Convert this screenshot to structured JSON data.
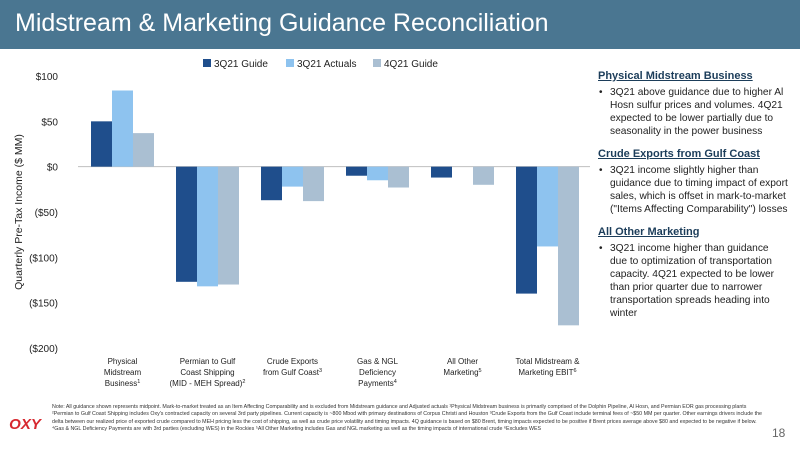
{
  "header": {
    "title": "Midstream & Marketing Guidance Reconciliation"
  },
  "colors": {
    "title_bar": "#4a7691",
    "guide_3q21": "#1f4e8c",
    "actuals_3q21": "#8ec3ef",
    "guide_4q21": "#aabfd2",
    "logo_red": "#d7282f"
  },
  "chart_data": {
    "type": "bar",
    "ylabel": "Quarterly Pre-Tax Income ($ MM)",
    "ylim": [
      -200,
      100
    ],
    "yticks": [
      100,
      50,
      0,
      -50,
      -100,
      -150,
      -200
    ],
    "ytick_labels": [
      "$100",
      "$50",
      "$0",
      "($50)",
      "($100)",
      "($150)",
      "($200)"
    ],
    "legend_position": "top",
    "categories": [
      {
        "lines": [
          "Physical",
          "Midstream",
          "Business"
        ],
        "sup": "1"
      },
      {
        "lines": [
          "Permian to Gulf",
          "Coast Shipping",
          "(MID - MEH Spread)"
        ],
        "sup": "2"
      },
      {
        "lines": [
          "Crude Exports",
          "from Gulf Coast"
        ],
        "sup": "3"
      },
      {
        "lines": [
          "Gas & NGL",
          "Deficiency",
          "Payments"
        ],
        "sup": "4"
      },
      {
        "lines": [
          "All Other",
          "Marketing"
        ],
        "sup": "5"
      },
      {
        "lines": [
          "Total Midstream &",
          "Marketing EBIT"
        ],
        "sup": "6"
      }
    ],
    "series": [
      {
        "name": "3Q21 Guide",
        "color": "#1f4e8c",
        "values": [
          50,
          -127,
          -37,
          -10,
          -12,
          -140
        ]
      },
      {
        "name": "3Q21 Actuals",
        "color": "#8ec3ef",
        "values": [
          84,
          -132,
          -22,
          -15,
          null,
          -88
        ]
      },
      {
        "name": "4Q21 Guide",
        "color": "#aabfd2",
        "values": [
          37,
          -130,
          -38,
          -23,
          -20,
          -175
        ]
      }
    ]
  },
  "commentary": [
    {
      "heading": "Physical Midstream Business",
      "bullet": "•",
      "text": "3Q21 above guidance due to higher Al Hosn sulfur prices and volumes. 4Q21 expected to be lower partially due to seasonality in the power business"
    },
    {
      "heading": "Crude Exports from Gulf Coast",
      "bullet": "•",
      "text": "3Q21 income slightly higher than guidance due to timing impact of export sales, which is offset in mark-to-market (\"Items Affecting Comparability\") losses"
    },
    {
      "heading": "All Other Marketing",
      "bullet": "•",
      "text": "3Q21 income higher than guidance due to optimization of transportation capacity. 4Q21 expected to be lower than prior quarter due to narrower transportation spreads heading into winter"
    }
  ],
  "footer": {
    "logo_text": "OXY",
    "note": "Note: All guidance shown represents midpoint. Mark-to-market treated as an Item Affecting Comparability and is excluded from Midstream guidance and Adjusted actuals   ¹Physical Midstream business is primarily comprised of the Dolphin Pipeline, Al Hosn, and Permian EOR gas processing plants   ²Permian to Gulf Coast Shipping includes Oxy's contracted capacity on several 3rd party pipelines. Current capacity is ~800 Mbod with primary destinations of Corpus Christi and Houston   ³Crude Exports from the Gulf Coast include terminal fees of ~$50 MM per quarter. Other earnings drivers include the delta between our realized price of exported crude compared to MEH pricing less the cost of shipping, as well as crude price volatility and timing impacts. 4Q guidance is based on $80 Brent, timing impacts expected to be positive if Brent prices average above $80 and expected to be negative if below.   ⁴Gas & NGL Deficiency Payments are with 3rd parties (excluding WES) in the Rockies   ⁵All Other Marketing includes Gas and NGL marketing as well as the timing impacts of international crude   ⁶Excludes WES",
    "page_number": "18"
  }
}
